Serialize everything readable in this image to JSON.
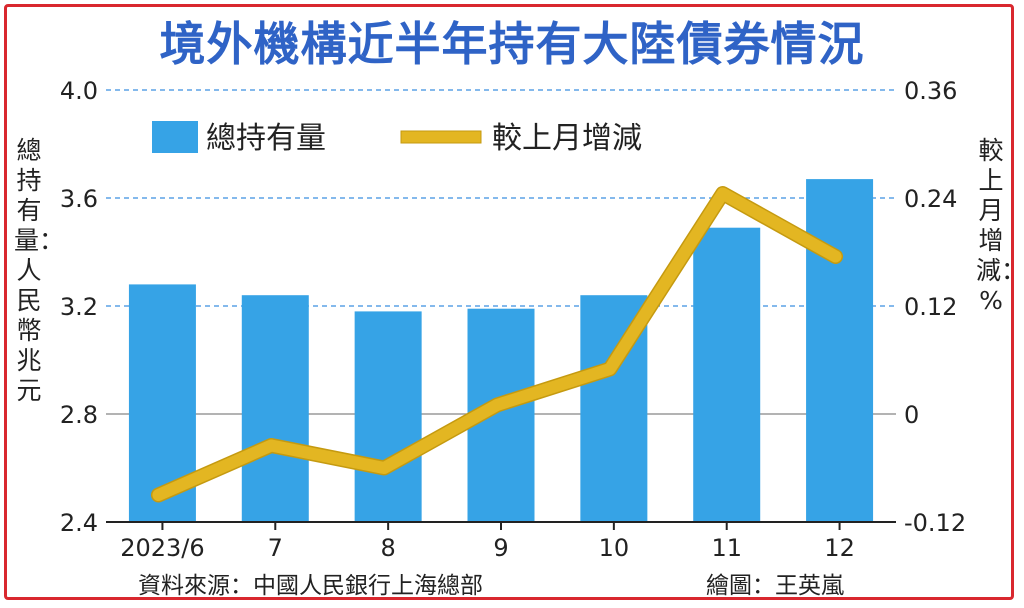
{
  "title": "境外機構近半年持有大陸債券情況",
  "footer": {
    "source": "資料來源：中國人民銀行上海總部",
    "credit": "繪圖：王英嵐"
  },
  "colors": {
    "bar": "#36a3e6",
    "line": "#e3b622",
    "title": "#2f63c6",
    "border": "#d9282f",
    "grid": "#3b8fe0"
  },
  "chart_data": {
    "type": "bar",
    "categories": [
      "2023/6",
      "7",
      "8",
      "9",
      "10",
      "11",
      "12"
    ],
    "series": [
      {
        "name": "總持有量",
        "type": "bar",
        "axis": "left",
        "values": [
          3.28,
          3.24,
          3.18,
          3.19,
          3.24,
          3.49,
          3.67
        ]
      },
      {
        "name": "較上月增減",
        "type": "line",
        "axis": "right",
        "values": [
          -0.09,
          -0.035,
          -0.06,
          0.01,
          0.05,
          0.245,
          0.175
        ]
      }
    ],
    "ylabel": "總持有量：人民幣兆元",
    "y2label": "較上月增減：%",
    "ylim": [
      2.4,
      4.0
    ],
    "y2lim": [
      -0.12,
      0.36
    ],
    "yticks": [
      "2.4",
      "2.8",
      "3.2",
      "3.6",
      "4.0"
    ],
    "y2ticks": [
      "-0.12",
      "0",
      "0.12",
      "0.24",
      "0.36"
    ],
    "legend_position": "top-left",
    "grid": "dashed horizontal"
  }
}
